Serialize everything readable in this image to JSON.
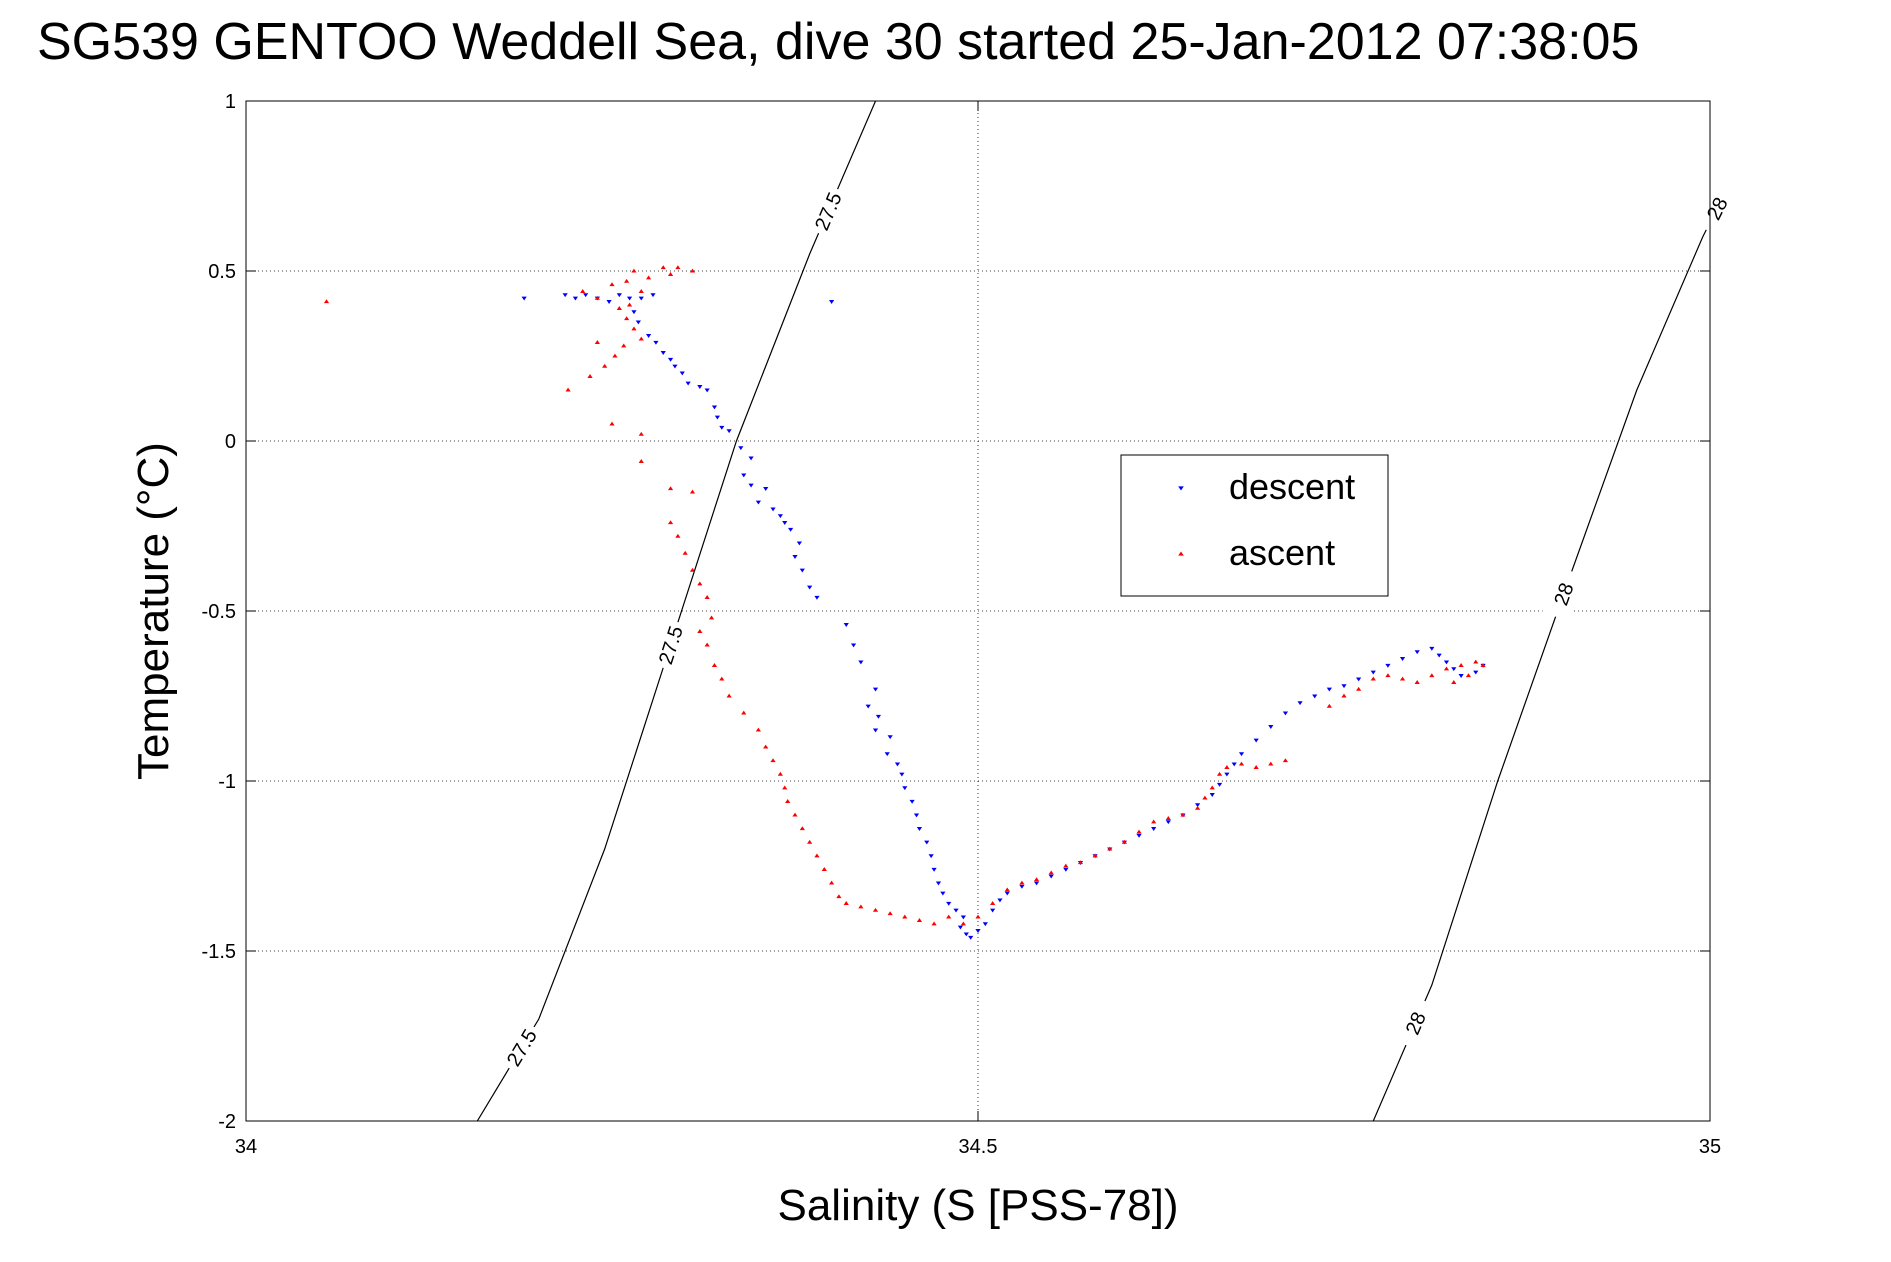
{
  "chart_data": {
    "type": "scatter",
    "title": "SG539 GENTOO Weddell Sea, dive 30 started 25-Jan-2012 07:38:05",
    "xlabel": "Salinity (S [PSS-78])",
    "ylabel": "Temperature (°C)",
    "xlim": [
      34,
      35
    ],
    "ylim": [
      -2,
      1
    ],
    "xticks": [
      34,
      34.5,
      35
    ],
    "xtick_labels": [
      "34",
      "34.5",
      "35"
    ],
    "yticks": [
      1,
      0.5,
      0,
      -0.5,
      -1,
      -1.5,
      -2
    ],
    "ytick_labels": [
      "1",
      "0.5",
      "0",
      "-0.5",
      "-1",
      "-1.5",
      "-2"
    ],
    "grid": true,
    "legend_position": "center-right",
    "density_contours": [
      {
        "label": "27.5",
        "points": [
          [
            34.158,
            -2
          ],
          [
            34.2,
            -1.7
          ],
          [
            34.245,
            -1.2
          ],
          [
            34.29,
            -0.6
          ],
          [
            34.335,
            0.0
          ],
          [
            34.385,
            0.55
          ],
          [
            34.43,
            1
          ]
        ]
      },
      {
        "label": "28",
        "points": [
          [
            34.77,
            -2
          ],
          [
            34.81,
            -1.6
          ],
          [
            34.855,
            -1.0
          ],
          [
            34.9,
            -0.45
          ],
          [
            34.95,
            0.15
          ],
          [
            34.995,
            0.6
          ],
          [
            35.03,
            0.9
          ]
        ]
      }
    ],
    "series": [
      {
        "name": "descent",
        "color": "#0000ff",
        "marker": "triangle-down",
        "points": [
          [
            34.19,
            0.42
          ],
          [
            34.4,
            0.41
          ],
          [
            34.218,
            0.43
          ],
          [
            34.225,
            0.42
          ],
          [
            34.232,
            0.43
          ],
          [
            34.24,
            0.42
          ],
          [
            34.248,
            0.41
          ],
          [
            34.255,
            0.43
          ],
          [
            34.262,
            0.42
          ],
          [
            34.27,
            0.42
          ],
          [
            34.278,
            0.43
          ],
          [
            34.265,
            0.38
          ],
          [
            34.268,
            0.35
          ],
          [
            34.275,
            0.31
          ],
          [
            34.28,
            0.29
          ],
          [
            34.285,
            0.26
          ],
          [
            34.29,
            0.24
          ],
          [
            34.293,
            0.22
          ],
          [
            34.298,
            0.2
          ],
          [
            34.302,
            0.17
          ],
          [
            34.31,
            0.16
          ],
          [
            34.315,
            0.15
          ],
          [
            34.32,
            0.1
          ],
          [
            34.322,
            0.07
          ],
          [
            34.325,
            0.04
          ],
          [
            34.33,
            0.03
          ],
          [
            34.338,
            -0.02
          ],
          [
            34.345,
            -0.05
          ],
          [
            34.34,
            -0.1
          ],
          [
            34.345,
            -0.13
          ],
          [
            34.355,
            -0.14
          ],
          [
            34.35,
            -0.18
          ],
          [
            34.36,
            -0.2
          ],
          [
            34.365,
            -0.22
          ],
          [
            34.372,
            -0.26
          ],
          [
            34.368,
            -0.24
          ],
          [
            34.378,
            -0.3
          ],
          [
            34.375,
            -0.34
          ],
          [
            34.38,
            -0.38
          ],
          [
            34.385,
            -0.43
          ],
          [
            34.39,
            -0.46
          ],
          [
            34.41,
            -0.54
          ],
          [
            34.415,
            -0.6
          ],
          [
            34.42,
            -0.65
          ],
          [
            34.43,
            -0.73
          ],
          [
            34.425,
            -0.78
          ],
          [
            34.432,
            -0.81
          ],
          [
            34.43,
            -0.85
          ],
          [
            34.44,
            -0.87
          ],
          [
            34.438,
            -0.92
          ],
          [
            34.445,
            -0.95
          ],
          [
            34.448,
            -0.98
          ],
          [
            34.45,
            -1.02
          ],
          [
            34.455,
            -1.06
          ],
          [
            34.458,
            -1.1
          ],
          [
            34.46,
            -1.14
          ],
          [
            34.465,
            -1.18
          ],
          [
            34.468,
            -1.22
          ],
          [
            34.47,
            -1.26
          ],
          [
            34.473,
            -1.3
          ],
          [
            34.476,
            -1.33
          ],
          [
            34.48,
            -1.36
          ],
          [
            34.485,
            -1.38
          ],
          [
            34.49,
            -1.4
          ],
          [
            34.488,
            -1.43
          ],
          [
            34.492,
            -1.45
          ],
          [
            34.495,
            -1.46
          ],
          [
            34.5,
            -1.44
          ],
          [
            34.505,
            -1.42
          ],
          [
            34.51,
            -1.38
          ],
          [
            34.515,
            -1.35
          ],
          [
            34.52,
            -1.33
          ],
          [
            34.53,
            -1.31
          ],
          [
            34.54,
            -1.3
          ],
          [
            34.55,
            -1.28
          ],
          [
            34.56,
            -1.26
          ],
          [
            34.57,
            -1.24
          ],
          [
            34.58,
            -1.22
          ],
          [
            34.59,
            -1.2
          ],
          [
            34.6,
            -1.18
          ],
          [
            34.61,
            -1.16
          ],
          [
            34.62,
            -1.14
          ],
          [
            34.63,
            -1.12
          ],
          [
            34.64,
            -1.1
          ],
          [
            34.65,
            -1.07
          ],
          [
            34.66,
            -1.04
          ],
          [
            34.665,
            -1.01
          ],
          [
            34.67,
            -0.98
          ],
          [
            34.675,
            -0.95
          ],
          [
            34.68,
            -0.92
          ],
          [
            34.69,
            -0.88
          ],
          [
            34.7,
            -0.84
          ],
          [
            34.71,
            -0.8
          ],
          [
            34.72,
            -0.77
          ],
          [
            34.73,
            -0.75
          ],
          [
            34.74,
            -0.73
          ],
          [
            34.75,
            -0.72
          ],
          [
            34.76,
            -0.7
          ],
          [
            34.77,
            -0.68
          ],
          [
            34.78,
            -0.66
          ],
          [
            34.79,
            -0.64
          ],
          [
            34.8,
            -0.62
          ],
          [
            34.81,
            -0.61
          ],
          [
            34.815,
            -0.63
          ],
          [
            34.82,
            -0.65
          ],
          [
            34.825,
            -0.67
          ],
          [
            34.83,
            -0.69
          ],
          [
            34.84,
            -0.68
          ],
          [
            34.845,
            -0.66
          ]
        ]
      },
      {
        "name": "ascent",
        "color": "#ff0000",
        "marker": "triangle-up",
        "points": [
          [
            34.055,
            0.41
          ],
          [
            34.23,
            0.44
          ],
          [
            34.24,
            0.42
          ],
          [
            34.25,
            0.46
          ],
          [
            34.26,
            0.47
          ],
          [
            34.265,
            0.5
          ],
          [
            34.275,
            0.48
          ],
          [
            34.285,
            0.51
          ],
          [
            34.29,
            0.49
          ],
          [
            34.295,
            0.51
          ],
          [
            34.305,
            0.5
          ],
          [
            34.255,
            0.39
          ],
          [
            34.26,
            0.36
          ],
          [
            34.265,
            0.33
          ],
          [
            34.27,
            0.3
          ],
          [
            34.258,
            0.28
          ],
          [
            34.252,
            0.25
          ],
          [
            34.245,
            0.22
          ],
          [
            34.235,
            0.19
          ],
          [
            34.24,
            0.29
          ],
          [
            34.262,
            0.4
          ],
          [
            34.27,
            0.44
          ],
          [
            34.22,
            0.15
          ],
          [
            34.25,
            0.05
          ],
          [
            34.27,
            0.02
          ],
          [
            34.27,
            -0.06
          ],
          [
            34.29,
            -0.14
          ],
          [
            34.305,
            -0.15
          ],
          [
            34.29,
            -0.24
          ],
          [
            34.295,
            -0.28
          ],
          [
            34.3,
            -0.33
          ],
          [
            34.305,
            -0.38
          ],
          [
            34.31,
            -0.42
          ],
          [
            34.315,
            -0.46
          ],
          [
            34.318,
            -0.52
          ],
          [
            34.31,
            -0.56
          ],
          [
            34.315,
            -0.6
          ],
          [
            34.32,
            -0.66
          ],
          [
            34.325,
            -0.7
          ],
          [
            34.33,
            -0.75
          ],
          [
            34.34,
            -0.8
          ],
          [
            34.35,
            -0.85
          ],
          [
            34.355,
            -0.9
          ],
          [
            34.36,
            -0.94
          ],
          [
            34.365,
            -0.98
          ],
          [
            34.368,
            -1.02
          ],
          [
            34.37,
            -1.06
          ],
          [
            34.375,
            -1.1
          ],
          [
            34.38,
            -1.14
          ],
          [
            34.385,
            -1.18
          ],
          [
            34.39,
            -1.22
          ],
          [
            34.395,
            -1.26
          ],
          [
            34.4,
            -1.3
          ],
          [
            34.405,
            -1.34
          ],
          [
            34.41,
            -1.36
          ],
          [
            34.42,
            -1.37
          ],
          [
            34.43,
            -1.38
          ],
          [
            34.44,
            -1.39
          ],
          [
            34.45,
            -1.4
          ],
          [
            34.46,
            -1.41
          ],
          [
            34.47,
            -1.42
          ],
          [
            34.48,
            -1.4
          ],
          [
            34.49,
            -1.42
          ],
          [
            34.5,
            -1.4
          ],
          [
            34.51,
            -1.36
          ],
          [
            34.52,
            -1.32
          ],
          [
            34.53,
            -1.3
          ],
          [
            34.54,
            -1.29
          ],
          [
            34.55,
            -1.27
          ],
          [
            34.56,
            -1.25
          ],
          [
            34.57,
            -1.24
          ],
          [
            34.58,
            -1.22
          ],
          [
            34.59,
            -1.2
          ],
          [
            34.6,
            -1.18
          ],
          [
            34.61,
            -1.15
          ],
          [
            34.62,
            -1.12
          ],
          [
            34.63,
            -1.11
          ],
          [
            34.64,
            -1.1
          ],
          [
            34.65,
            -1.08
          ],
          [
            34.655,
            -1.05
          ],
          [
            34.66,
            -1.02
          ],
          [
            34.665,
            -0.98
          ],
          [
            34.67,
            -0.96
          ],
          [
            34.68,
            -0.95
          ],
          [
            34.69,
            -0.96
          ],
          [
            34.7,
            -0.95
          ],
          [
            34.71,
            -0.94
          ],
          [
            34.74,
            -0.78
          ],
          [
            34.75,
            -0.75
          ],
          [
            34.76,
            -0.73
          ],
          [
            34.77,
            -0.7
          ],
          [
            34.78,
            -0.69
          ],
          [
            34.79,
            -0.7
          ],
          [
            34.8,
            -0.71
          ],
          [
            34.81,
            -0.69
          ],
          [
            34.82,
            -0.67
          ],
          [
            34.83,
            -0.66
          ],
          [
            34.84,
            -0.65
          ],
          [
            34.845,
            -0.66
          ],
          [
            34.835,
            -0.69
          ],
          [
            34.825,
            -0.71
          ]
        ]
      }
    ]
  }
}
